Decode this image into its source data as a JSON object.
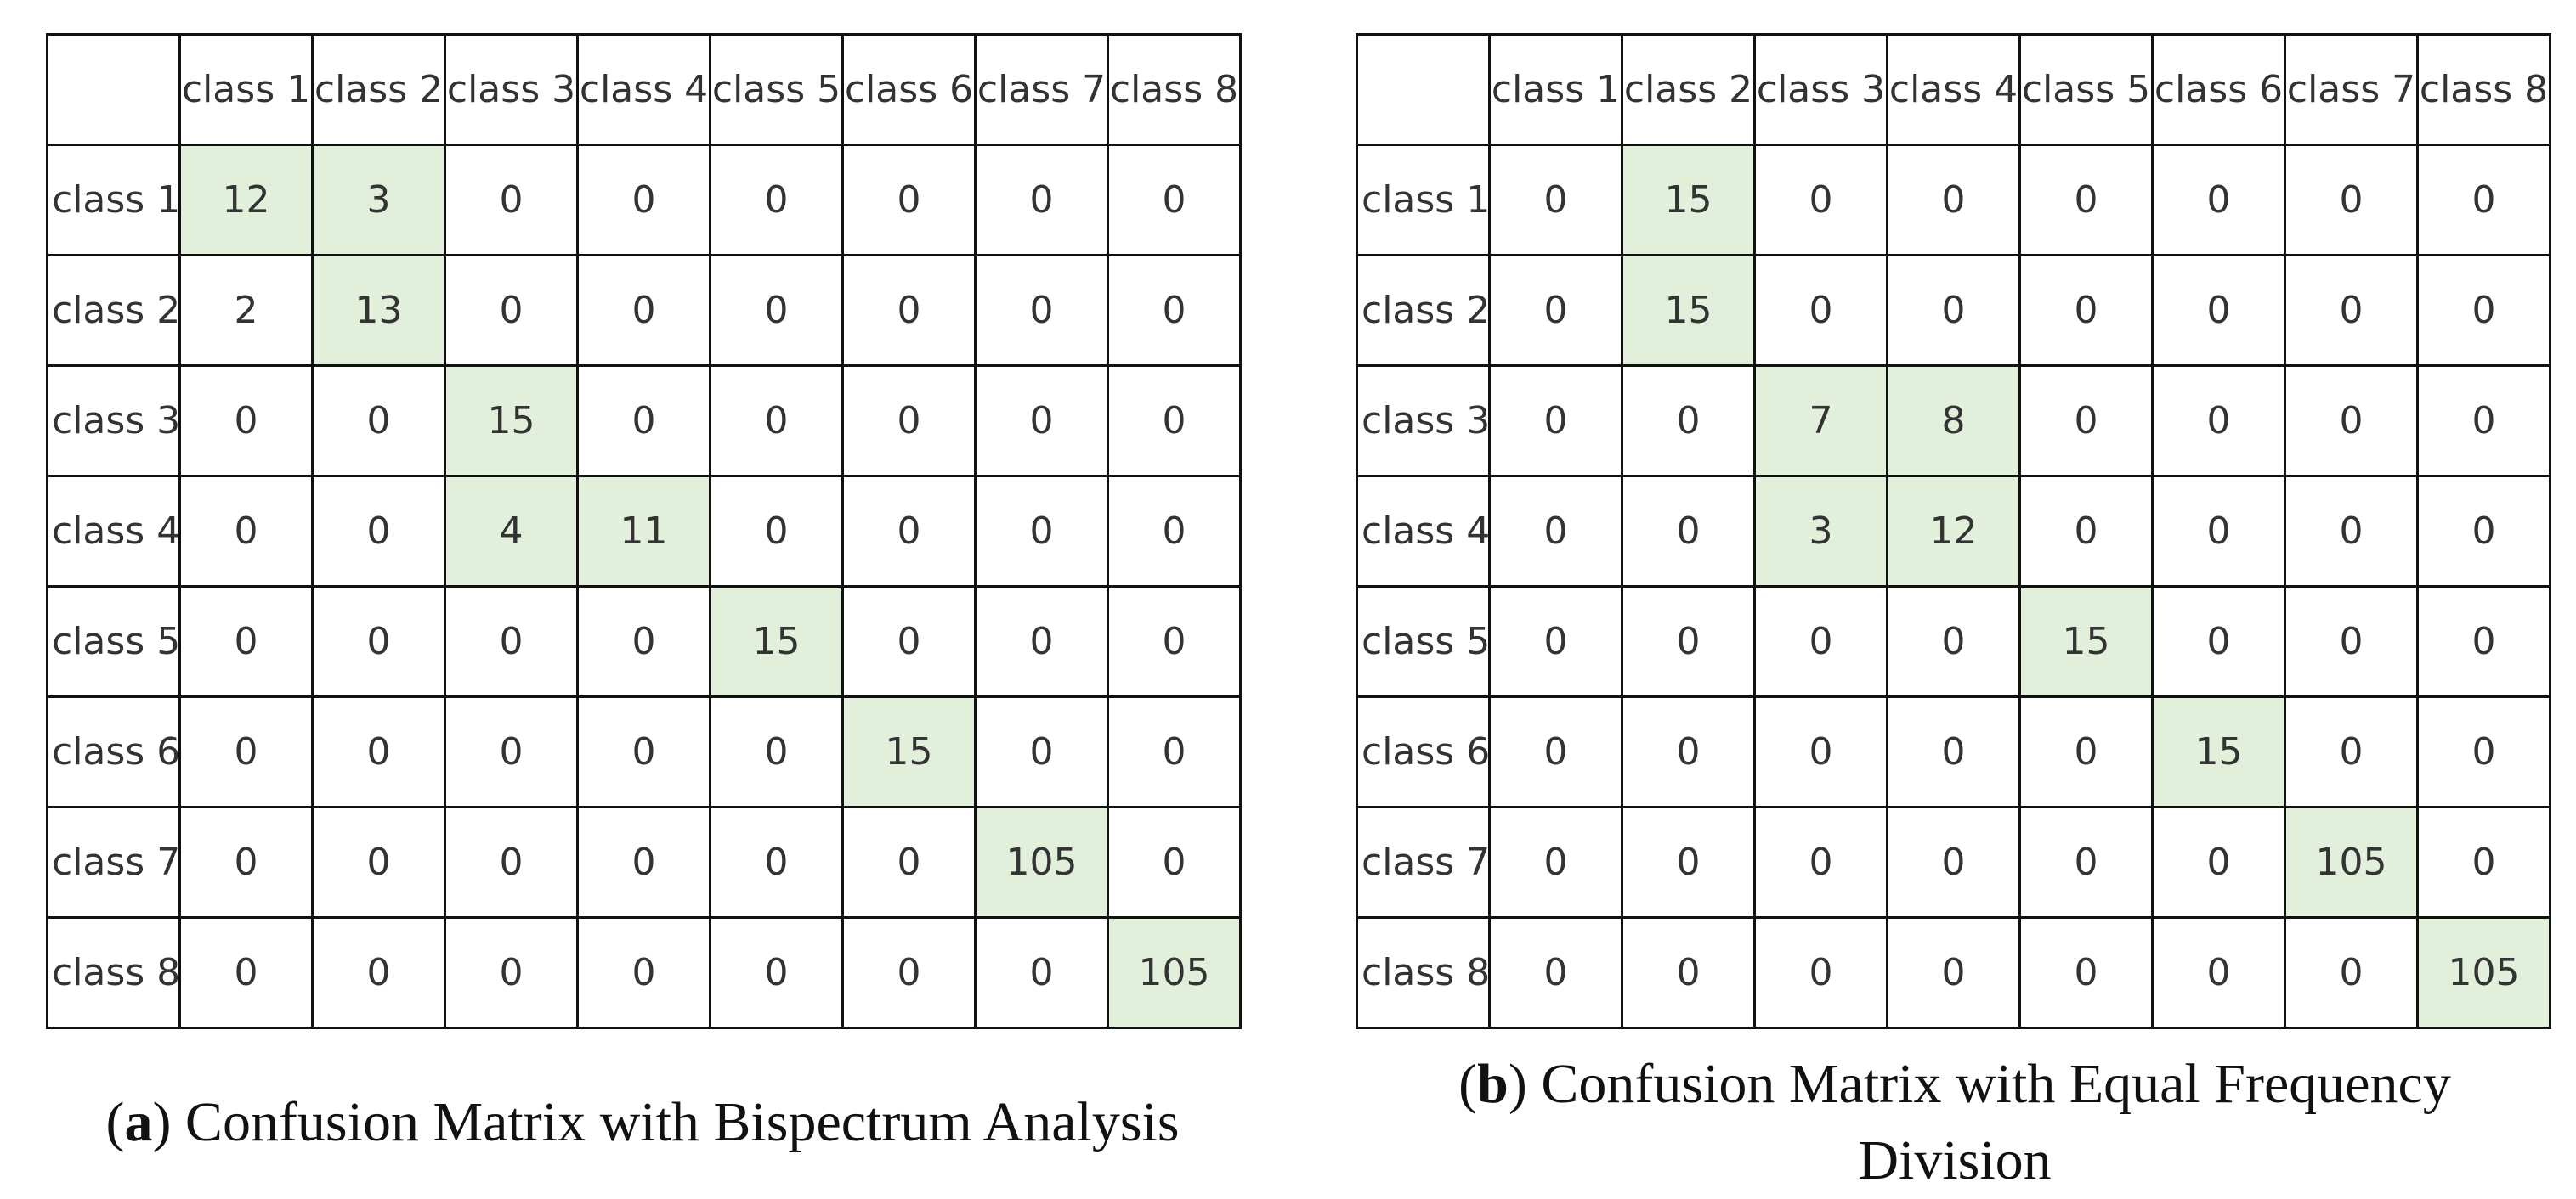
{
  "panels": [
    {
      "caption": [
        "(",
        "a",
        ") Confusion Matrix with Bispectrum Analysis"
      ],
      "highlight_color": "#e2efda",
      "highlighted": [
        [
          0,
          0
        ],
        [
          0,
          1
        ],
        [
          1,
          1
        ],
        [
          2,
          2
        ],
        [
          3,
          2
        ],
        [
          3,
          3
        ],
        [
          4,
          4
        ],
        [
          5,
          5
        ],
        [
          6,
          6
        ],
        [
          7,
          7
        ]
      ],
      "columns": [
        "class 1",
        "class 2",
        "class 3",
        "class 4",
        "class 5",
        "class 6",
        "class 7",
        "class 8"
      ],
      "rows": [
        {
          "label": "class 1",
          "values": [
            12,
            3,
            0,
            0,
            0,
            0,
            0,
            0
          ]
        },
        {
          "label": "class 2",
          "values": [
            2,
            13,
            0,
            0,
            0,
            0,
            0,
            0
          ]
        },
        {
          "label": "class 3",
          "values": [
            0,
            0,
            15,
            0,
            0,
            0,
            0,
            0
          ]
        },
        {
          "label": "class 4",
          "values": [
            0,
            0,
            4,
            11,
            0,
            0,
            0,
            0
          ]
        },
        {
          "label": "class 5",
          "values": [
            0,
            0,
            0,
            0,
            15,
            0,
            0,
            0
          ]
        },
        {
          "label": "class 6",
          "values": [
            0,
            0,
            0,
            0,
            0,
            15,
            0,
            0
          ]
        },
        {
          "label": "class 7",
          "values": [
            0,
            0,
            0,
            0,
            0,
            0,
            105,
            0
          ]
        },
        {
          "label": "class 8",
          "values": [
            0,
            0,
            0,
            0,
            0,
            0,
            0,
            105
          ]
        }
      ]
    },
    {
      "caption": [
        "(",
        "b",
        ") Confusion Matrix with Equal Frequency Division"
      ],
      "highlight_color": "#e2efda",
      "highlighted": [
        [
          0,
          1
        ],
        [
          1,
          1
        ],
        [
          2,
          2
        ],
        [
          2,
          3
        ],
        [
          3,
          2
        ],
        [
          3,
          3
        ],
        [
          4,
          4
        ],
        [
          5,
          5
        ],
        [
          6,
          6
        ],
        [
          7,
          7
        ]
      ],
      "columns": [
        "class 1",
        "class 2",
        "class 3",
        "class 4",
        "class 5",
        "class 6",
        "class 7",
        "class 8"
      ],
      "rows": [
        {
          "label": "class 1",
          "values": [
            0,
            15,
            0,
            0,
            0,
            0,
            0,
            0
          ]
        },
        {
          "label": "class 2",
          "values": [
            0,
            15,
            0,
            0,
            0,
            0,
            0,
            0
          ]
        },
        {
          "label": "class 3",
          "values": [
            0,
            0,
            7,
            8,
            0,
            0,
            0,
            0
          ]
        },
        {
          "label": "class 4",
          "values": [
            0,
            0,
            3,
            12,
            0,
            0,
            0,
            0
          ]
        },
        {
          "label": "class 5",
          "values": [
            0,
            0,
            0,
            0,
            15,
            0,
            0,
            0
          ]
        },
        {
          "label": "class 6",
          "values": [
            0,
            0,
            0,
            0,
            0,
            15,
            0,
            0
          ]
        },
        {
          "label": "class 7",
          "values": [
            0,
            0,
            0,
            0,
            0,
            0,
            105,
            0
          ]
        },
        {
          "label": "class 8",
          "values": [
            0,
            0,
            0,
            0,
            0,
            0,
            0,
            105
          ]
        }
      ]
    }
  ]
}
